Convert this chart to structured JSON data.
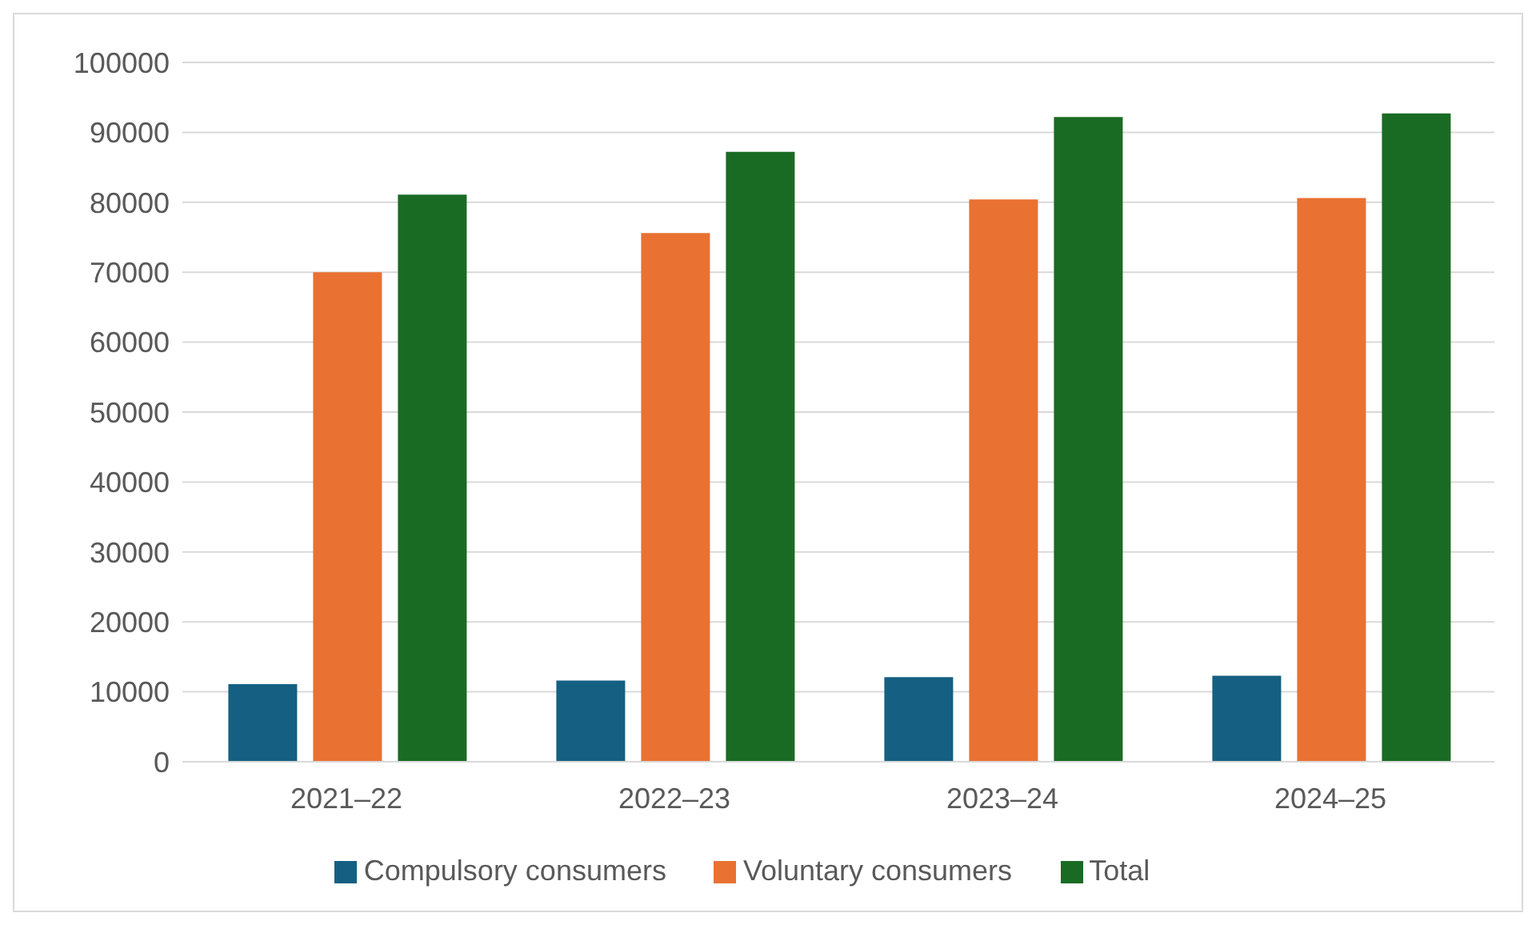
{
  "chart_data": {
    "type": "bar",
    "categories": [
      "2021–22",
      "2022–23",
      "2023–24",
      "2024–25"
    ],
    "series": [
      {
        "name": "Compulsory consumers",
        "color": "#156082",
        "values": [
          11100,
          11600,
          12100,
          12300
        ]
      },
      {
        "name": "Voluntary consumers",
        "color": "#e97132",
        "values": [
          70000,
          75600,
          80400,
          80600
        ]
      },
      {
        "name": "Total",
        "color": "#196b24",
        "values": [
          81100,
          87200,
          92200,
          92700
        ]
      }
    ],
    "ylim": [
      0,
      100000
    ],
    "yticks": [
      0,
      10000,
      20000,
      30000,
      40000,
      50000,
      60000,
      70000,
      80000,
      90000,
      100000
    ],
    "grid": "y",
    "legend": "bottom"
  }
}
